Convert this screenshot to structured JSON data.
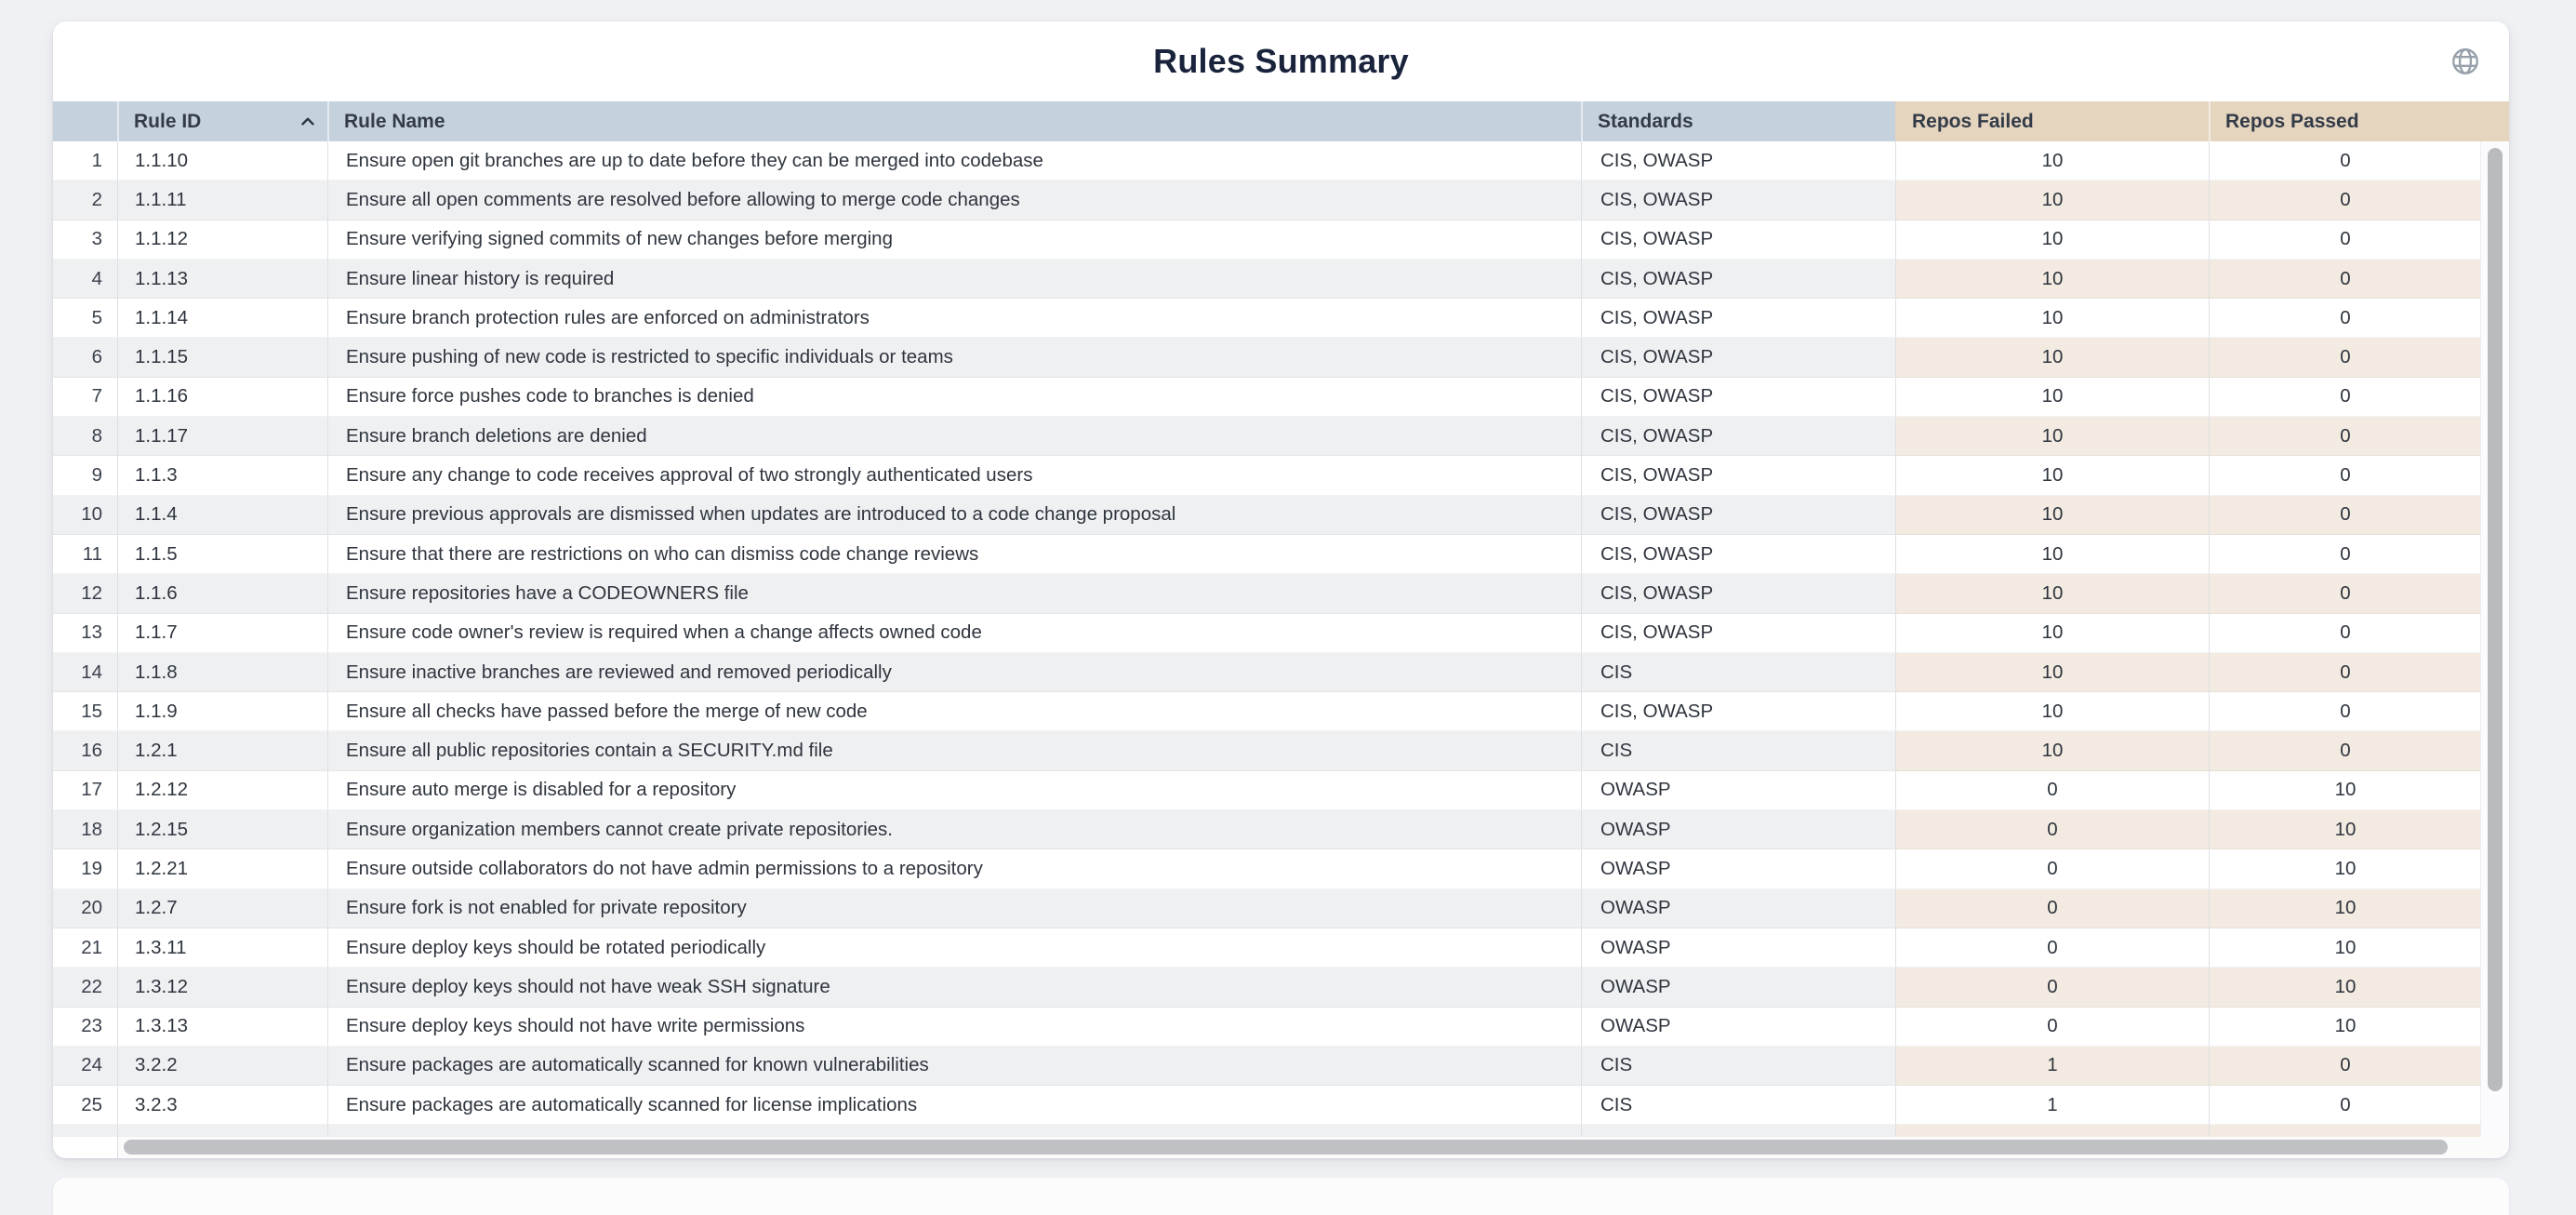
{
  "page": {
    "background": "#eff1f4",
    "title": "Rules Summary"
  },
  "icons": {
    "globe": "globe-icon",
    "sort_indicator": "chevron-up-icon",
    "sort_direction": "ascending"
  },
  "colors": {
    "header_blue": "#c6d1de",
    "header_tan": "#e5d5bf",
    "row_even_gray": "#eff0f2",
    "row_even_tan": "#f3ebe1",
    "title_text": "#19233b",
    "cell_text": "#2f353e",
    "scrollbar_thumb": "#bfc0c3"
  },
  "table": {
    "columns": [
      {
        "key": "index",
        "label": ""
      },
      {
        "key": "rule_id",
        "label": "Rule ID",
        "sort": "asc"
      },
      {
        "key": "rule_name",
        "label": "Rule Name"
      },
      {
        "key": "standards",
        "label": "Standards"
      },
      {
        "key": "repos_failed",
        "label": "Repos Failed"
      },
      {
        "key": "repos_passed",
        "label": "Repos Passed"
      }
    ],
    "rows": [
      {
        "index": 1,
        "rule_id": "1.1.10",
        "rule_name": "Ensure open git branches are up to date before they can be merged into codebase",
        "standards": "CIS, OWASP",
        "repos_failed": 10,
        "repos_passed": 0
      },
      {
        "index": 2,
        "rule_id": "1.1.11",
        "rule_name": "Ensure all open comments are resolved before allowing to merge code changes",
        "standards": "CIS, OWASP",
        "repos_failed": 10,
        "repos_passed": 0
      },
      {
        "index": 3,
        "rule_id": "1.1.12",
        "rule_name": "Ensure verifying signed commits of new changes before merging",
        "standards": "CIS, OWASP",
        "repos_failed": 10,
        "repos_passed": 0
      },
      {
        "index": 4,
        "rule_id": "1.1.13",
        "rule_name": "Ensure linear history is required",
        "standards": "CIS, OWASP",
        "repos_failed": 10,
        "repos_passed": 0
      },
      {
        "index": 5,
        "rule_id": "1.1.14",
        "rule_name": "Ensure branch protection rules are enforced on administrators",
        "standards": "CIS, OWASP",
        "repos_failed": 10,
        "repos_passed": 0
      },
      {
        "index": 6,
        "rule_id": "1.1.15",
        "rule_name": "Ensure pushing of new code is restricted to specific individuals or teams",
        "standards": "CIS, OWASP",
        "repos_failed": 10,
        "repos_passed": 0
      },
      {
        "index": 7,
        "rule_id": "1.1.16",
        "rule_name": "Ensure force pushes code to branches is denied",
        "standards": "CIS, OWASP",
        "repos_failed": 10,
        "repos_passed": 0
      },
      {
        "index": 8,
        "rule_id": "1.1.17",
        "rule_name": "Ensure branch deletions are denied",
        "standards": "CIS, OWASP",
        "repos_failed": 10,
        "repos_passed": 0
      },
      {
        "index": 9,
        "rule_id": "1.1.3",
        "rule_name": "Ensure any change to code receives approval of two strongly authenticated users",
        "standards": "CIS, OWASP",
        "repos_failed": 10,
        "repos_passed": 0
      },
      {
        "index": 10,
        "rule_id": "1.1.4",
        "rule_name": "Ensure previous approvals are dismissed when updates are introduced to a code change proposal",
        "standards": "CIS, OWASP",
        "repos_failed": 10,
        "repos_passed": 0
      },
      {
        "index": 11,
        "rule_id": "1.1.5",
        "rule_name": "Ensure that there are restrictions on who can dismiss code change reviews",
        "standards": "CIS, OWASP",
        "repos_failed": 10,
        "repos_passed": 0
      },
      {
        "index": 12,
        "rule_id": "1.1.6",
        "rule_name": "Ensure repositories have a CODEOWNERS file",
        "standards": "CIS, OWASP",
        "repos_failed": 10,
        "repos_passed": 0
      },
      {
        "index": 13,
        "rule_id": "1.1.7",
        "rule_name": "Ensure code owner's review is required when a change affects owned code",
        "standards": "CIS, OWASP",
        "repos_failed": 10,
        "repos_passed": 0
      },
      {
        "index": 14,
        "rule_id": "1.1.8",
        "rule_name": "Ensure inactive branches are reviewed and removed periodically",
        "standards": "CIS",
        "repos_failed": 10,
        "repos_passed": 0
      },
      {
        "index": 15,
        "rule_id": "1.1.9",
        "rule_name": "Ensure all checks have passed before the merge of new code",
        "standards": "CIS, OWASP",
        "repos_failed": 10,
        "repos_passed": 0
      },
      {
        "index": 16,
        "rule_id": "1.2.1",
        "rule_name": "Ensure all public repositories contain a SECURITY.md file",
        "standards": "CIS",
        "repos_failed": 10,
        "repos_passed": 0
      },
      {
        "index": 17,
        "rule_id": "1.2.12",
        "rule_name": "Ensure auto merge is disabled for a repository",
        "standards": "OWASP",
        "repos_failed": 0,
        "repos_passed": 10
      },
      {
        "index": 18,
        "rule_id": "1.2.15",
        "rule_name": "Ensure organization members cannot create private repositories.",
        "standards": "OWASP",
        "repos_failed": 0,
        "repos_passed": 10
      },
      {
        "index": 19,
        "rule_id": "1.2.21",
        "rule_name": "Ensure outside collaborators do not have admin permissions to a repository",
        "standards": "OWASP",
        "repos_failed": 0,
        "repos_passed": 10
      },
      {
        "index": 20,
        "rule_id": "1.2.7",
        "rule_name": "Ensure fork is not enabled for private repository",
        "standards": "OWASP",
        "repos_failed": 0,
        "repos_passed": 10
      },
      {
        "index": 21,
        "rule_id": "1.3.11",
        "rule_name": "Ensure deploy keys should be rotated periodically",
        "standards": "OWASP",
        "repos_failed": 0,
        "repos_passed": 10
      },
      {
        "index": 22,
        "rule_id": "1.3.12",
        "rule_name": "Ensure deploy keys should not have weak SSH signature",
        "standards": "OWASP",
        "repos_failed": 0,
        "repos_passed": 10
      },
      {
        "index": 23,
        "rule_id": "1.3.13",
        "rule_name": "Ensure deploy keys should not have write permissions",
        "standards": "OWASP",
        "repos_failed": 0,
        "repos_passed": 10
      },
      {
        "index": 24,
        "rule_id": "3.2.2",
        "rule_name": "Ensure packages are automatically scanned for known vulnerabilities",
        "standards": "CIS",
        "repos_failed": 1,
        "repos_passed": 0
      },
      {
        "index": 25,
        "rule_id": "3.2.3",
        "rule_name": "Ensure packages are automatically scanned for license implications",
        "standards": "CIS",
        "repos_failed": 1,
        "repos_passed": 0
      }
    ]
  }
}
